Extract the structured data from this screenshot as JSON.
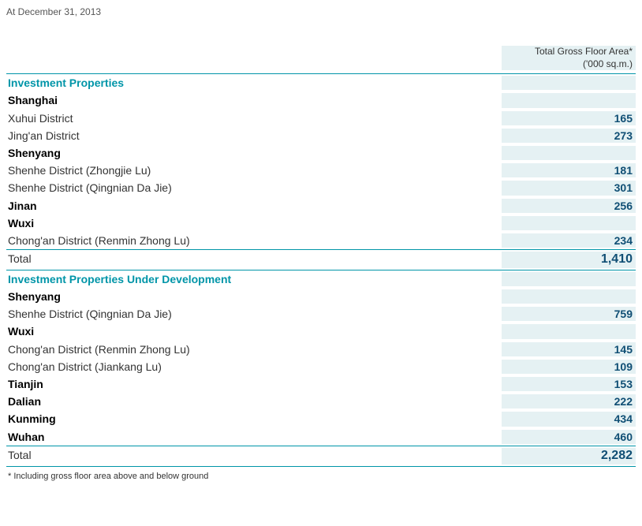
{
  "date_line": "At December 31, 2013",
  "header": {
    "line1": "Total Gross Floor Area*",
    "line2": "('000 sq.m.)"
  },
  "rows": [
    {
      "hr": true
    },
    {
      "label": "Investment Properties",
      "section": true
    },
    {
      "label": "Shanghai",
      "city": true
    },
    {
      "label": "Xuhui District",
      "value": "165"
    },
    {
      "label": "Jing'an District",
      "value": "273"
    },
    {
      "label": "Shenyang",
      "city": true
    },
    {
      "label": "Shenhe District (Zhongjie Lu)",
      "value": "181"
    },
    {
      "label": "Shenhe District (Qingnian Da Jie)",
      "value": "301"
    },
    {
      "label": "Jinan",
      "city": true,
      "value": "256"
    },
    {
      "label": "Wuxi",
      "city": true
    },
    {
      "label": "Chong'an District (Renmin Zhong Lu)",
      "value": "234"
    },
    {
      "hr": true
    },
    {
      "label": "Total",
      "total": true,
      "value": "1,410"
    },
    {
      "hr": true
    },
    {
      "label": "Investment Properties Under Development",
      "section": true
    },
    {
      "label": "Shenyang",
      "city": true
    },
    {
      "label": "Shenhe District (Qingnian Da Jie)",
      "value": "759"
    },
    {
      "label": "Wuxi",
      "city": true
    },
    {
      "label": "Chong'an District (Renmin Zhong Lu)",
      "value": "145"
    },
    {
      "label": "Chong'an District (Jiankang Lu)",
      "value": "109"
    },
    {
      "label": "Tianjin",
      "city": true,
      "value": "153"
    },
    {
      "label": "Dalian",
      "city": true,
      "value": "222"
    },
    {
      "label": "Kunming",
      "city": true,
      "value": "434"
    },
    {
      "label": "Wuhan",
      "city": true,
      "value": "460"
    },
    {
      "hr": true
    },
    {
      "label": "Total",
      "total": true,
      "value": "2,282"
    },
    {
      "hr": true
    }
  ],
  "footnote": "*  Including gross floor area above and below ground",
  "colors": {
    "section_heading": "#0095a8",
    "value_text": "#0f4e74",
    "divider": "#0095a8",
    "value_bg": "#e5f1f3",
    "text": "#333333",
    "city_heading": "#000000",
    "background": "#ffffff"
  }
}
